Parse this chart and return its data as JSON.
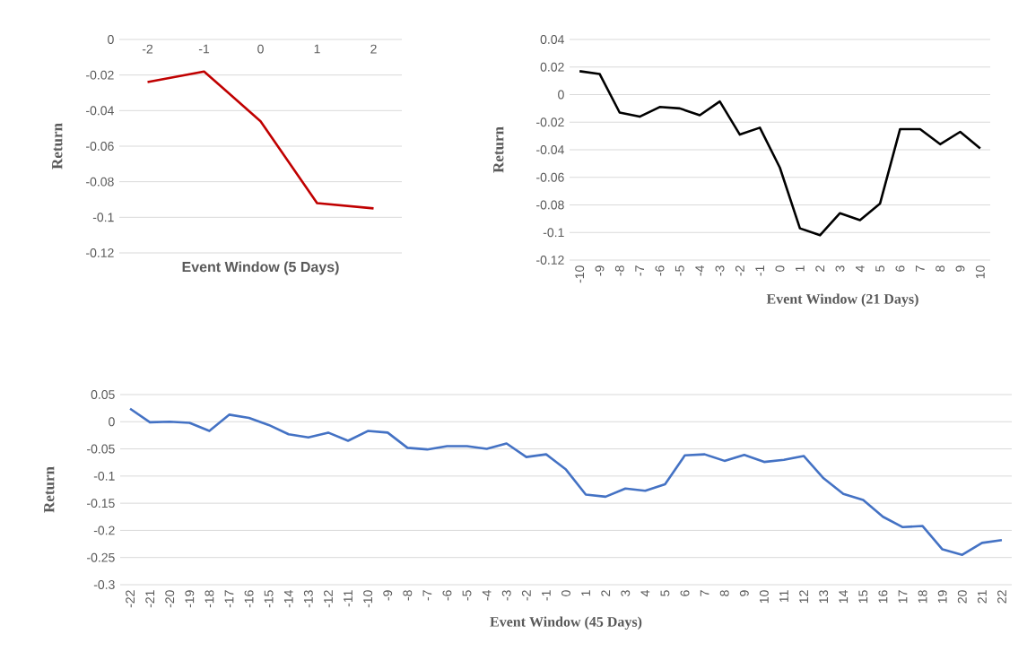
{
  "chart_data": [
    {
      "type": "line",
      "xlabel": "Event Window (5 Days)",
      "ylabel": "Return",
      "categories": [
        "-2",
        "-1",
        "0",
        "1",
        "2"
      ],
      "values": [
        -0.024,
        -0.018,
        -0.046,
        -0.092,
        -0.095
      ],
      "color": "#c00000",
      "ylim": [
        -0.12,
        0
      ],
      "yticks": [
        -0.12,
        -0.1,
        -0.08,
        -0.06,
        -0.04,
        -0.02,
        0
      ],
      "grid": "y"
    },
    {
      "type": "line",
      "xlabel": "Event Window (21 Days)",
      "ylabel": "Return",
      "categories": [
        "-10",
        "-9",
        "-8",
        "-7",
        "-6",
        "-5",
        "-4",
        "-3",
        "-2",
        "-1",
        "0",
        "1",
        "2",
        "3",
        "4",
        "5",
        "6",
        "7",
        "8",
        "9",
        "10"
      ],
      "values": [
        0.017,
        0.015,
        -0.013,
        -0.016,
        -0.009,
        -0.01,
        -0.015,
        -0.005,
        -0.029,
        -0.024,
        -0.053,
        -0.097,
        -0.102,
        -0.086,
        -0.091,
        -0.079,
        -0.025,
        -0.025,
        -0.036,
        -0.027,
        -0.039
      ],
      "color": "#000000",
      "ylim": [
        -0.12,
        0.04
      ],
      "yticks": [
        -0.12,
        -0.1,
        -0.08,
        -0.06,
        -0.04,
        -0.02,
        0,
        0.02,
        0.04
      ],
      "grid": "y"
    },
    {
      "type": "line",
      "xlabel": "Event Window (45 Days)",
      "ylabel": "Return",
      "categories": [
        "-22",
        "-21",
        "-20",
        "-19",
        "-18",
        "-17",
        "-16",
        "-15",
        "-14",
        "-13",
        "-12",
        "-11",
        "-10",
        "-9",
        "-8",
        "-7",
        "-6",
        "-5",
        "-4",
        "-3",
        "-2",
        "-1",
        "0",
        "1",
        "2",
        "3",
        "4",
        "5",
        "6",
        "7",
        "8",
        "9",
        "10",
        "11",
        "12",
        "13",
        "14",
        "15",
        "16",
        "17",
        "18",
        "19",
        "20",
        "21",
        "22"
      ],
      "values": [
        0.024,
        -0.001,
        0.0,
        -0.002,
        -0.017,
        0.013,
        0.007,
        -0.006,
        -0.023,
        -0.029,
        -0.02,
        -0.035,
        -0.017,
        -0.02,
        -0.048,
        -0.051,
        -0.045,
        -0.045,
        -0.05,
        -0.04,
        -0.065,
        -0.06,
        -0.088,
        -0.134,
        -0.138,
        -0.123,
        -0.127,
        -0.115,
        -0.062,
        -0.06,
        -0.072,
        -0.061,
        -0.074,
        -0.07,
        -0.063,
        -0.104,
        -0.133,
        -0.144,
        -0.175,
        -0.194,
        -0.192,
        -0.235,
        -0.245,
        -0.223,
        -0.218
      ],
      "color": "#4472c4",
      "ylim": [
        -0.3,
        0.05
      ],
      "yticks": [
        -0.3,
        -0.25,
        -0.2,
        -0.15,
        -0.1,
        -0.05,
        0,
        0.05
      ],
      "grid": "y"
    }
  ]
}
